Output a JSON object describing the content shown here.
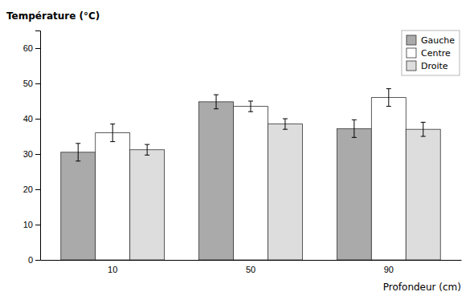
{
  "chart_data": {
    "type": "bar",
    "ylabel": "Température (°C)",
    "xlabel": "Profondeur (cm)",
    "categories": [
      "10",
      "50",
      "90"
    ],
    "series": [
      {
        "name": "Gauche",
        "color": "#aaaaaa",
        "values": [
          30.5,
          44.8,
          37.2
        ],
        "errors": [
          2.5,
          2.0,
          2.5
        ]
      },
      {
        "name": "Centre",
        "color": "#ffffff",
        "values": [
          36.0,
          43.5,
          46.0
        ],
        "errors": [
          2.5,
          1.5,
          2.5
        ]
      },
      {
        "name": "Droite",
        "color": "#dddddd",
        "values": [
          31.2,
          38.5,
          37.0
        ],
        "errors": [
          1.5,
          1.5,
          2.0
        ]
      }
    ],
    "ylim": [
      0,
      65
    ],
    "yticks": [
      0,
      10,
      20,
      30,
      40,
      50,
      60
    ],
    "grid": false,
    "legend": "upper right"
  }
}
